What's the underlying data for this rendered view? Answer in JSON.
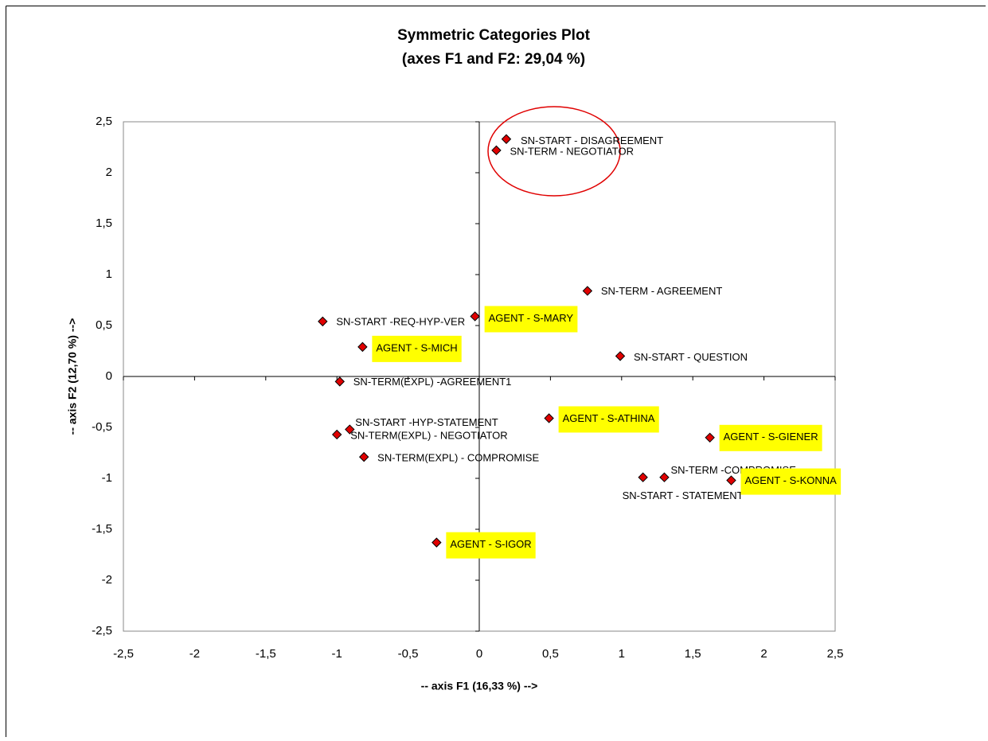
{
  "chart_data": {
    "type": "scatter",
    "title": "Symmetric Categories Plot",
    "subtitle": "(axes F1 and F2: 29,04 %)",
    "x_label": "-- axis F1 (16,33 %) -->",
    "y_label": "-- axis F2 (12,70 %) -->",
    "xlim": [
      -2.5,
      2.5
    ],
    "ylim": [
      -2.5,
      2.5
    ],
    "xticks": [
      {
        "value": -2.5,
        "label": "-2,5"
      },
      -2,
      {
        "value": -1.5,
        "label": "-1,5"
      },
      -1,
      {
        "value": -0.5,
        "label": "-0,5"
      },
      0,
      {
        "value": 0.5,
        "label": "0,5"
      },
      1,
      {
        "value": 1.5,
        "label": "1,5"
      },
      2,
      {
        "value": 2.5,
        "label": "2,5"
      }
    ],
    "yticks": [
      {
        "value": -2.5,
        "label": "-2,5"
      },
      -2,
      {
        "value": -1.5,
        "label": "-1,5"
      },
      -1,
      {
        "value": -0.5,
        "label": "-0,5"
      },
      0,
      {
        "value": 0.5,
        "label": "0,5"
      },
      1,
      {
        "value": 1.5,
        "label": "1,5"
      },
      2,
      {
        "value": 2.5,
        "label": "2,5"
      }
    ],
    "color": "#e00000",
    "highlight_color": "#ffff00",
    "labels": [
      "SN-START - DISAGREEMENT",
      "SN-TERM - NEGOTIATOR",
      "SN-TERM - AGREEMENT",
      "AGENT - S-MARY",
      "SN-START -REQ-HYP-VER",
      "AGENT - S-MICH",
      "SN-START - QUESTION",
      "SN-TERM(EXPL) -AGREEMENT1",
      "AGENT - S-ATHINA",
      "SN-START -HYP-STATEMENT",
      "SN-TERM(EXPL) - NEGOTIATOR",
      "AGENT - S-GIENER",
      "SN-TERM(EXPL) - COMPROMISE",
      "SN-START - STATEMENT",
      "SN-TERM -COMPROMISE",
      "AGENT - S-KONNA",
      "AGENT - S-IGOR"
    ],
    "highlighted": [
      false,
      false,
      false,
      true,
      false,
      true,
      false,
      false,
      true,
      false,
      false,
      true,
      false,
      false,
      false,
      true,
      true
    ],
    "x": [
      0.19,
      0.12,
      0.76,
      -0.03,
      -1.1,
      -0.82,
      0.99,
      -0.98,
      0.49,
      -0.91,
      -1.0,
      1.62,
      -0.81,
      1.15,
      1.3,
      1.77,
      -0.3
    ],
    "y": [
      2.33,
      2.22,
      0.84,
      0.59,
      0.54,
      0.29,
      0.2,
      -0.05,
      -0.41,
      -0.52,
      -0.57,
      -0.6,
      -0.79,
      -0.99,
      -0.99,
      -1.02,
      -1.63
    ]
  }
}
